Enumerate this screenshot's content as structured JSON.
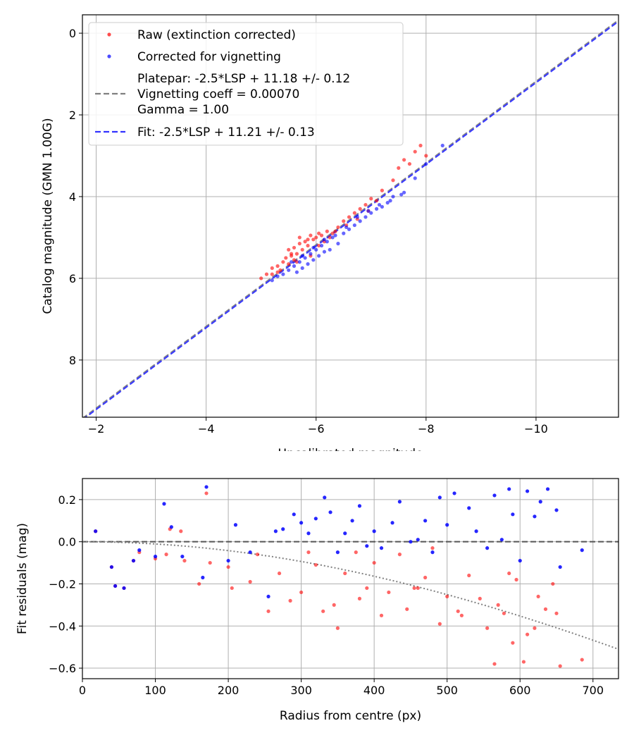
{
  "chart_data": [
    {
      "type": "scatter",
      "xlabel": "Uncalibrated magnitude",
      "ylabel": "Catalog magnitude (GMN 1.00G)",
      "xlim": [
        -1.75,
        -11.5
      ],
      "ylim": [
        9.4,
        -0.45
      ],
      "xticks": [
        -2,
        -4,
        -6,
        -8,
        -10
      ],
      "xtick_labels": [
        "−2",
        "−4",
        "−6",
        "−8",
        "−10"
      ],
      "yticks": [
        0,
        2,
        4,
        6,
        8
      ],
      "ytick_labels": [
        "0",
        "2",
        "4",
        "6",
        "8"
      ],
      "grid": true,
      "legend_position": "top-left",
      "legend": [
        {
          "label": "Raw (extinction corrected)",
          "kind": "dot",
          "color": "#ff0000"
        },
        {
          "label": "Corrected for vignetting",
          "kind": "dot",
          "color": "#0000ff"
        },
        {
          "label": "Platepar: -2.5*LSP + 11.18 +/- 0.12",
          "label2": "Vignetting coeff = 0.00070",
          "label3": "Gamma = 1.00",
          "kind": "dashed",
          "color": "#808080"
        },
        {
          "label": "Fit: -2.5*LSP + 11.21 +/- 0.13",
          "kind": "dashed",
          "color": "#3333ff"
        }
      ],
      "lines": [
        {
          "name": "Platepar",
          "slope": 1.0,
          "intercept": 11.18,
          "color": "#808080"
        },
        {
          "name": "Fit",
          "slope": 1.0,
          "intercept": 11.21,
          "color": "#3333ff"
        }
      ],
      "series": [
        {
          "name": "Raw (extinction corrected)",
          "color": "#ff0000",
          "points": [
            [
              -5.0,
              6.0
            ],
            [
              -5.1,
              5.9
            ],
            [
              -5.2,
              5.75
            ],
            [
              -5.3,
              5.7
            ],
            [
              -5.35,
              5.8
            ],
            [
              -5.4,
              5.6
            ],
            [
              -5.45,
              5.5
            ],
            [
              -5.5,
              5.65
            ],
            [
              -5.55,
              5.4
            ],
            [
              -5.6,
              5.55
            ],
            [
              -5.6,
              5.25
            ],
            [
              -5.65,
              5.4
            ],
            [
              -5.7,
              5.0
            ],
            [
              -5.75,
              5.3
            ],
            [
              -5.8,
              5.1
            ],
            [
              -5.85,
              5.2
            ],
            [
              -5.9,
              5.45
            ],
            [
              -5.95,
              5.05
            ],
            [
              -6.0,
              5.0
            ],
            [
              -6.05,
              5.2
            ],
            [
              -6.1,
              4.95
            ],
            [
              -6.15,
              5.1
            ],
            [
              -6.2,
              4.85
            ],
            [
              -6.3,
              4.9
            ],
            [
              -6.4,
              4.75
            ],
            [
              -6.5,
              4.6
            ],
            [
              -6.6,
              4.5
            ],
            [
              -6.7,
              4.4
            ],
            [
              -6.8,
              4.3
            ],
            [
              -6.9,
              4.2
            ],
            [
              -7.0,
              4.05
            ],
            [
              -7.2,
              3.85
            ],
            [
              -7.4,
              3.6
            ],
            [
              -7.5,
              3.3
            ],
            [
              -7.6,
              3.1
            ],
            [
              -7.7,
              3.2
            ],
            [
              -7.8,
              2.9
            ],
            [
              -7.9,
              2.75
            ],
            [
              -8.0,
              3.0
            ],
            [
              -5.2,
              5.9
            ],
            [
              -5.3,
              5.85
            ],
            [
              -5.5,
              5.3
            ],
            [
              -5.55,
              5.45
            ],
            [
              -5.65,
              5.6
            ],
            [
              -5.7,
              5.15
            ],
            [
              -5.85,
              5.05
            ],
            [
              -5.9,
              4.95
            ],
            [
              -6.05,
              4.9
            ],
            [
              -6.25,
              5.0
            ],
            [
              -6.35,
              4.85
            ],
            [
              -6.55,
              4.7
            ],
            [
              -6.75,
              4.55
            ],
            [
              -6.95,
              4.35
            ],
            [
              -7.1,
              4.1
            ]
          ]
        },
        {
          "name": "Corrected for vignetting",
          "color": "#0000ff",
          "points": [
            [
              -5.2,
              6.05
            ],
            [
              -5.3,
              5.95
            ],
            [
              -5.4,
              5.9
            ],
            [
              -5.5,
              5.8
            ],
            [
              -5.6,
              5.7
            ],
            [
              -5.65,
              5.85
            ],
            [
              -5.7,
              5.6
            ],
            [
              -5.75,
              5.75
            ],
            [
              -5.8,
              5.5
            ],
            [
              -5.85,
              5.65
            ],
            [
              -5.9,
              5.4
            ],
            [
              -5.95,
              5.55
            ],
            [
              -6.0,
              5.3
            ],
            [
              -6.05,
              5.45
            ],
            [
              -6.1,
              5.2
            ],
            [
              -6.15,
              5.35
            ],
            [
              -6.2,
              5.1
            ],
            [
              -6.25,
              5.3
            ],
            [
              -6.3,
              5.0
            ],
            [
              -6.4,
              5.15
            ],
            [
              -6.5,
              4.9
            ],
            [
              -6.6,
              4.8
            ],
            [
              -6.7,
              4.7
            ],
            [
              -6.8,
              4.6
            ],
            [
              -6.9,
              4.5
            ],
            [
              -7.0,
              4.4
            ],
            [
              -7.1,
              4.3
            ],
            [
              -7.2,
              4.25
            ],
            [
              -7.3,
              4.15
            ],
            [
              -7.4,
              4.0
            ],
            [
              -7.6,
              3.9
            ],
            [
              -7.8,
              3.55
            ],
            [
              -8.0,
              3.2
            ],
            [
              -8.3,
              2.75
            ],
            [
              -5.55,
              5.6
            ],
            [
              -5.75,
              5.45
            ],
            [
              -5.95,
              5.25
            ],
            [
              -6.15,
              5.05
            ],
            [
              -6.35,
              4.95
            ],
            [
              -6.55,
              4.75
            ],
            [
              -6.75,
              4.5
            ],
            [
              -6.95,
              4.35
            ],
            [
              -7.15,
              4.2
            ],
            [
              -7.35,
              4.1
            ],
            [
              -7.55,
              3.95
            ]
          ]
        }
      ]
    },
    {
      "type": "scatter",
      "xlabel": "Radius from centre (px)",
      "ylabel": "Fit residuals (mag)",
      "xlim": [
        0,
        735
      ],
      "ylim": [
        -0.65,
        0.3
      ],
      "xticks": [
        0,
        100,
        200,
        300,
        400,
        500,
        600,
        700
      ],
      "xtick_labels": [
        "0",
        "100",
        "200",
        "300",
        "400",
        "500",
        "600",
        "700"
      ],
      "yticks": [
        0.2,
        0.0,
        -0.2,
        -0.4,
        -0.6
      ],
      "ytick_labels": [
        "0.2",
        "0.0",
        "−0.2",
        "−0.4",
        "−0.6"
      ],
      "grid": true,
      "reference_line": {
        "y": 0.0,
        "color": "#555555"
      },
      "vignetting_curve": {
        "coeff": 0.0007,
        "color": "#808080"
      },
      "series": [
        {
          "name": "Raw (extinction corrected)",
          "color": "#ff0000",
          "points": [
            [
              18,
              0.05
            ],
            [
              40,
              -0.12
            ],
            [
              45,
              -0.21
            ],
            [
              57,
              -0.22
            ],
            [
              70,
              -0.09
            ],
            [
              78,
              -0.05
            ],
            [
              100,
              -0.08
            ],
            [
              115,
              -0.06
            ],
            [
              120,
              0.06
            ],
            [
              135,
              0.05
            ],
            [
              140,
              -0.09
            ],
            [
              160,
              -0.2
            ],
            [
              170,
              0.23
            ],
            [
              175,
              -0.1
            ],
            [
              200,
              -0.12
            ],
            [
              205,
              -0.22
            ],
            [
              230,
              -0.19
            ],
            [
              240,
              -0.06
            ],
            [
              255,
              -0.33
            ],
            [
              270,
              -0.15
            ],
            [
              285,
              -0.28
            ],
            [
              300,
              -0.24
            ],
            [
              310,
              -0.05
            ],
            [
              320,
              -0.11
            ],
            [
              330,
              -0.33
            ],
            [
              345,
              -0.3
            ],
            [
              350,
              -0.41
            ],
            [
              360,
              -0.15
            ],
            [
              375,
              -0.05
            ],
            [
              380,
              -0.27
            ],
            [
              390,
              -0.22
            ],
            [
              400,
              -0.1
            ],
            [
              410,
              -0.35
            ],
            [
              420,
              -0.24
            ],
            [
              435,
              -0.06
            ],
            [
              445,
              -0.32
            ],
            [
              455,
              -0.22
            ],
            [
              460,
              -0.22
            ],
            [
              470,
              -0.17
            ],
            [
              480,
              -0.03
            ],
            [
              490,
              -0.39
            ],
            [
              500,
              -0.26
            ],
            [
              515,
              -0.33
            ],
            [
              520,
              -0.35
            ],
            [
              530,
              -0.16
            ],
            [
              545,
              -0.27
            ],
            [
              555,
              -0.41
            ],
            [
              565,
              -0.58
            ],
            [
              570,
              -0.3
            ],
            [
              578,
              -0.34
            ],
            [
              585,
              -0.15
            ],
            [
              590,
              -0.48
            ],
            [
              595,
              -0.18
            ],
            [
              605,
              -0.57
            ],
            [
              610,
              -0.44
            ],
            [
              620,
              -0.41
            ],
            [
              625,
              -0.26
            ],
            [
              635,
              -0.32
            ],
            [
              645,
              -0.2
            ],
            [
              650,
              -0.34
            ],
            [
              655,
              -0.59
            ],
            [
              685,
              -0.56
            ]
          ]
        },
        {
          "name": "Corrected for vignetting",
          "color": "#0000ff",
          "points": [
            [
              18,
              0.05
            ],
            [
              40,
              -0.12
            ],
            [
              45,
              -0.21
            ],
            [
              57,
              -0.22
            ],
            [
              70,
              -0.09
            ],
            [
              78,
              -0.04
            ],
            [
              100,
              -0.07
            ],
            [
              112,
              0.18
            ],
            [
              122,
              0.07
            ],
            [
              137,
              -0.07
            ],
            [
              165,
              -0.17
            ],
            [
              170,
              0.26
            ],
            [
              200,
              -0.09
            ],
            [
              210,
              0.08
            ],
            [
              230,
              -0.05
            ],
            [
              255,
              -0.26
            ],
            [
              265,
              0.05
            ],
            [
              275,
              0.06
            ],
            [
              290,
              0.13
            ],
            [
              300,
              0.09
            ],
            [
              310,
              0.04
            ],
            [
              320,
              0.11
            ],
            [
              332,
              0.21
            ],
            [
              340,
              0.14
            ],
            [
              350,
              -0.05
            ],
            [
              360,
              0.04
            ],
            [
              370,
              0.1
            ],
            [
              380,
              0.17
            ],
            [
              390,
              -0.02
            ],
            [
              400,
              0.05
            ],
            [
              410,
              -0.03
            ],
            [
              425,
              0.09
            ],
            [
              435,
              0.19
            ],
            [
              450,
              0.0
            ],
            [
              460,
              0.01
            ],
            [
              470,
              0.1
            ],
            [
              480,
              -0.05
            ],
            [
              490,
              0.21
            ],
            [
              500,
              0.08
            ],
            [
              510,
              0.23
            ],
            [
              530,
              0.16
            ],
            [
              540,
              0.05
            ],
            [
              555,
              -0.03
            ],
            [
              565,
              0.22
            ],
            [
              575,
              0.01
            ],
            [
              585,
              0.25
            ],
            [
              590,
              0.13
            ],
            [
              600,
              -0.09
            ],
            [
              610,
              0.24
            ],
            [
              620,
              0.12
            ],
            [
              628,
              0.19
            ],
            [
              638,
              0.25
            ],
            [
              650,
              0.15
            ],
            [
              655,
              -0.12
            ],
            [
              685,
              -0.04
            ]
          ]
        }
      ]
    }
  ]
}
